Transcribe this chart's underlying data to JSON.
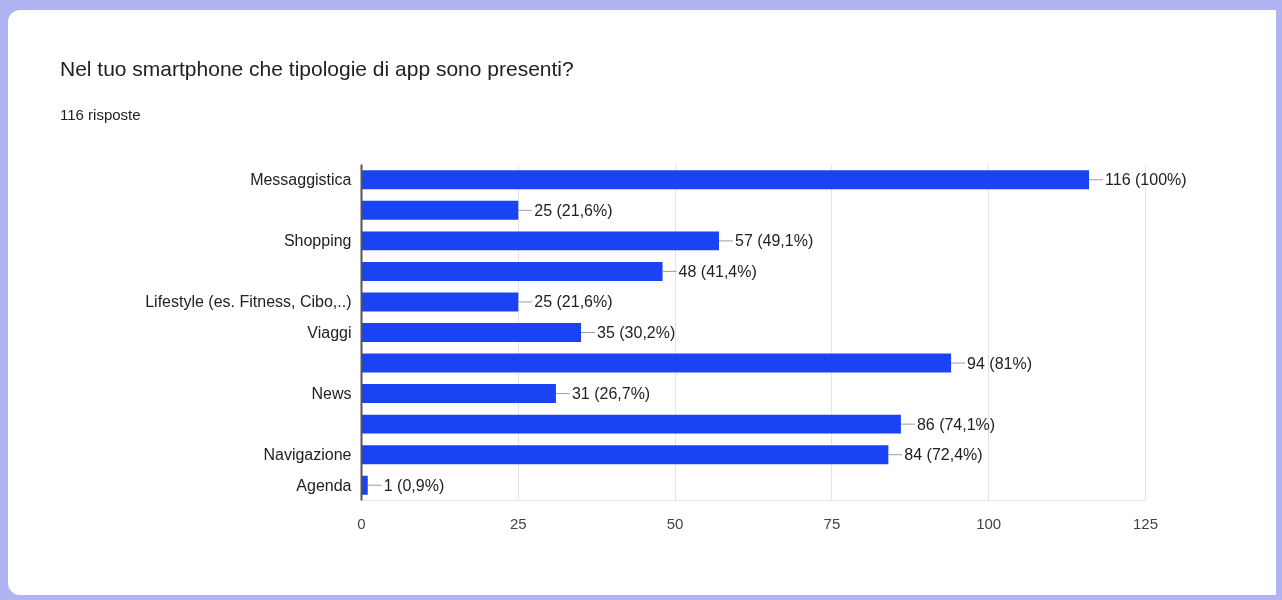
{
  "chart_data": {
    "type": "bar",
    "orientation": "horizontal",
    "title": "Nel tuo smartphone che tipologie di app sono presenti?",
    "subtitle": "116 risposte",
    "categories": [
      "Messaggistica",
      null,
      "Shopping",
      null,
      "Lifestyle (es. Fitness, Cibo,..)",
      "Viaggi",
      null,
      "News",
      null,
      "Navigazione",
      "Agenda"
    ],
    "values": [
      116,
      25,
      57,
      48,
      25,
      35,
      94,
      31,
      86,
      84,
      1
    ],
    "value_labels": [
      "116 (100%)",
      "25 (21,6%)",
      "57 (49,1%)",
      "48 (41,4%)",
      "25 (21,6%)",
      "35 (30,2%)",
      "94 (81%)",
      "31 (26,7%)",
      "86 (74,1%)",
      "84 (72,4%)",
      "1 (0,9%)"
    ],
    "color": "#1a43f4",
    "xlim": [
      0,
      125
    ],
    "xticks": [
      0,
      25,
      50,
      75,
      100,
      125
    ],
    "grid": "x"
  }
}
